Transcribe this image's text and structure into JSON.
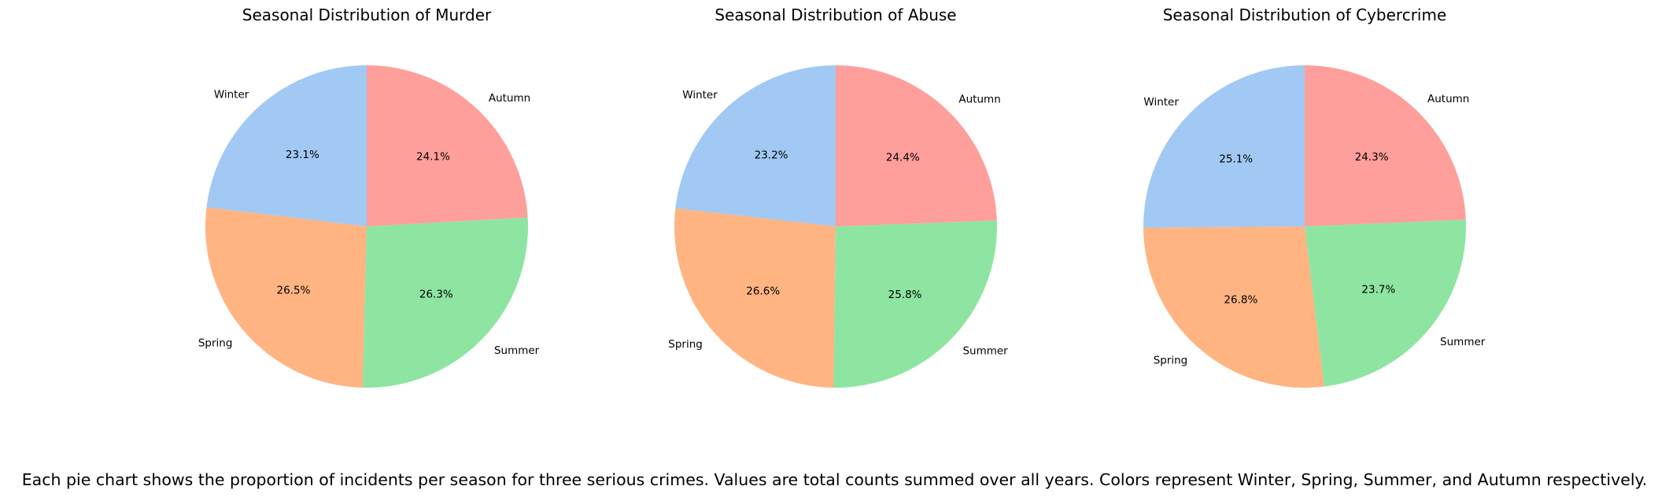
{
  "caption": "Each pie chart shows the proportion of incidents per season for three serious crimes. Values are total counts summed over all years. Colors represent Winter, Spring, Summer, and Autumn respectively.",
  "colors": {
    "Winter": "#a1c9f4",
    "Spring": "#ffb482",
    "Summer": "#8de5a1",
    "Autumn": "#ff9f9b"
  },
  "chart_data": [
    {
      "type": "pie",
      "title": "Seasonal Distribution of Murder",
      "categories": [
        "Winter",
        "Spring",
        "Summer",
        "Autumn"
      ],
      "values": [
        23.1,
        26.5,
        26.3,
        24.1
      ],
      "labels": [
        "23.1%",
        "26.5%",
        "26.3%",
        "24.1%"
      ],
      "start_angle_deg": 90,
      "direction": "counterclockwise"
    },
    {
      "type": "pie",
      "title": "Seasonal Distribution of Abuse",
      "categories": [
        "Winter",
        "Spring",
        "Summer",
        "Autumn"
      ],
      "values": [
        23.2,
        26.6,
        25.8,
        24.4
      ],
      "labels": [
        "23.2%",
        "26.6%",
        "25.8%",
        "24.4%"
      ],
      "start_angle_deg": 90,
      "direction": "counterclockwise"
    },
    {
      "type": "pie",
      "title": "Seasonal Distribution of Cybercrime",
      "categories": [
        "Winter",
        "Spring",
        "Summer",
        "Autumn"
      ],
      "values": [
        25.1,
        26.8,
        23.7,
        24.3
      ],
      "labels": [
        "25.1%",
        "26.8%",
        "23.7%",
        "24.3%"
      ],
      "start_angle_deg": 90,
      "direction": "counterclockwise"
    }
  ]
}
